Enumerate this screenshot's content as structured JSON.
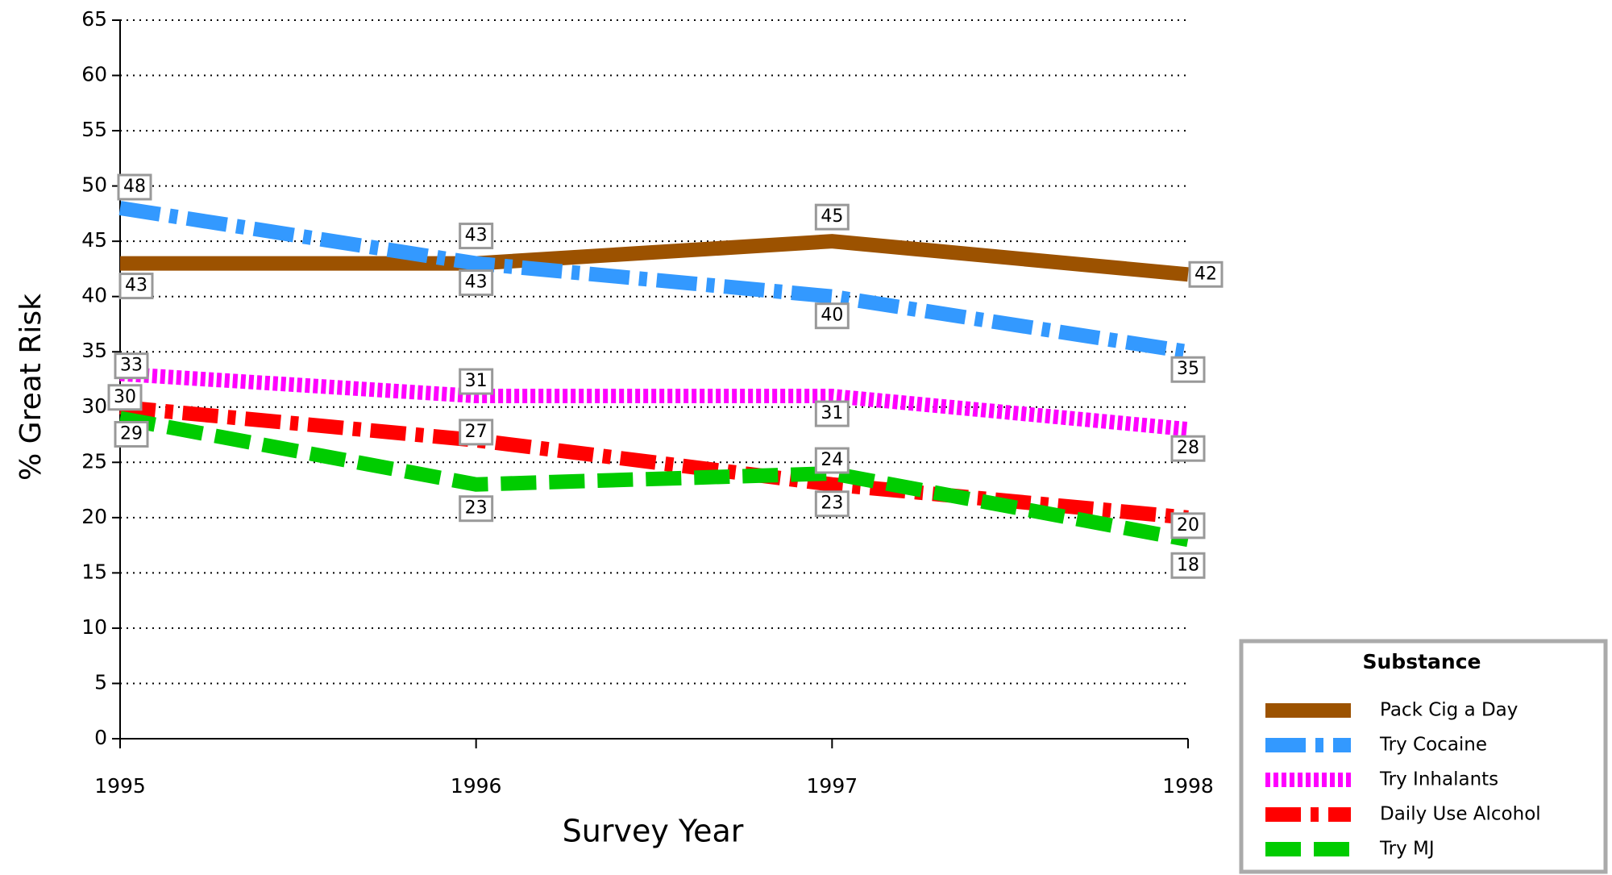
{
  "chart_data": {
    "type": "line",
    "x_label": "Survey Year",
    "y_label": "% Great Risk",
    "x": [
      1995,
      1996,
      1997,
      1998
    ],
    "xlim": [
      1995,
      1998
    ],
    "xticks": [
      1995,
      1996,
      1997,
      1998
    ],
    "ylim": [
      0,
      65
    ],
    "yticks": [
      0,
      5,
      10,
      15,
      20,
      25,
      30,
      35,
      40,
      45,
      50,
      55,
      60,
      65
    ],
    "grid": true,
    "legend_title": "Substance",
    "legend_position": "bottom-right",
    "series": [
      {
        "name": "Pack Cig a Day",
        "color": "#9c5200",
        "values": [
          43,
          43,
          45,
          42
        ]
      },
      {
        "name": "Try Cocaine",
        "color": "#3399ff",
        "values": [
          48,
          43,
          40,
          35
        ]
      },
      {
        "name": "Try Inhalants",
        "color": "#ff00ff",
        "values": [
          33,
          31,
          31,
          28
        ]
      },
      {
        "name": "Daily Use Alcohol",
        "color": "#ff0000",
        "values": [
          30,
          27,
          23,
          20
        ]
      },
      {
        "name": "Try MJ",
        "color": "#00cc00",
        "values": [
          29,
          23,
          24,
          18
        ]
      }
    ]
  }
}
